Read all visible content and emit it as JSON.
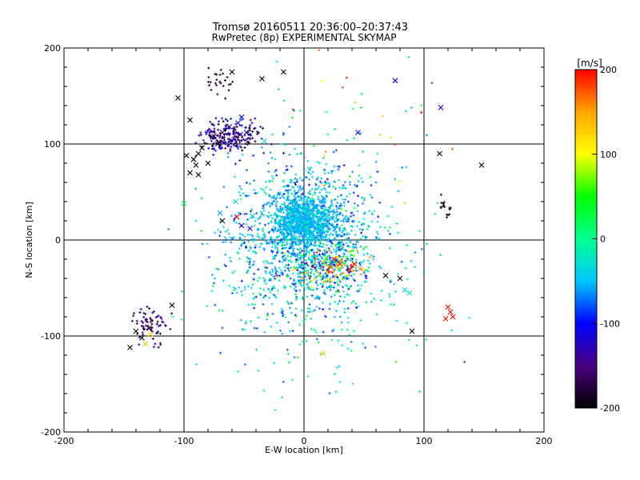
{
  "chart_data": {
    "type": "scatter",
    "title": "Tromsø 20160511 20:36:00–20:37:43",
    "subtitle": "RwPretec (8p) EXPERIMENTAL SKYMAP",
    "xlabel": "E-W location [km]",
    "ylabel": "N-S location [km]",
    "xlim": [
      -200,
      200
    ],
    "ylim": [
      -200,
      200
    ],
    "xticks": [
      "-200",
      "-100",
      "0",
      "100",
      "200"
    ],
    "yticks": [
      "-200",
      "-100",
      "0",
      "100",
      "200"
    ],
    "grid": true,
    "colorbar": {
      "label": "[m/s]",
      "range": [
        -200,
        200
      ],
      "ticks": [
        "200",
        "100",
        "0",
        "-100",
        "-200"
      ],
      "colors": [
        "#000000",
        "#4b0082",
        "#0000ff",
        "#00c8ff",
        "#00ff90",
        "#00ff00",
        "#ffff00",
        "#ffa500",
        "#ff0000"
      ]
    },
    "marker_types": {
      "dot": "+",
      "cross": "x"
    },
    "crosses": [
      {
        "x": -60,
        "y": 175,
        "v": -200
      },
      {
        "x": -35,
        "y": 168,
        "v": -200
      },
      {
        "x": -17,
        "y": 175,
        "v": -200
      },
      {
        "x": -105,
        "y": 148,
        "v": -200
      },
      {
        "x": -95,
        "y": 125,
        "v": -200
      },
      {
        "x": -75,
        "y": 108,
        "v": -180
      },
      {
        "x": -68,
        "y": 112,
        "v": -160
      },
      {
        "x": -62,
        "y": 118,
        "v": -140
      },
      {
        "x": -55,
        "y": 122,
        "v": -120
      },
      {
        "x": -48,
        "y": 112,
        "v": -120
      },
      {
        "x": -52,
        "y": 128,
        "v": -100
      },
      {
        "x": -58,
        "y": 105,
        "v": -150
      },
      {
        "x": -72,
        "y": 100,
        "v": -190
      },
      {
        "x": -98,
        "y": 88,
        "v": -200
      },
      {
        "x": -92,
        "y": 84,
        "v": -200
      },
      {
        "x": -88,
        "y": 90,
        "v": -200
      },
      {
        "x": -85,
        "y": 96,
        "v": -200
      },
      {
        "x": -80,
        "y": 80,
        "v": -200
      },
      {
        "x": -90,
        "y": 78,
        "v": -200
      },
      {
        "x": -95,
        "y": 70,
        "v": -200
      },
      {
        "x": -88,
        "y": 68,
        "v": -200
      },
      {
        "x": -33,
        "y": 103,
        "v": -30
      },
      {
        "x": 45,
        "y": 112,
        "v": -110
      },
      {
        "x": 76,
        "y": 166,
        "v": -110
      },
      {
        "x": 114,
        "y": 138,
        "v": -110
      },
      {
        "x": 113,
        "y": 90,
        "v": -200
      },
      {
        "x": 148,
        "y": 78,
        "v": -200
      },
      {
        "x": -100,
        "y": 38,
        "v": 20
      },
      {
        "x": -57,
        "y": 40,
        "v": -40
      },
      {
        "x": -68,
        "y": 20,
        "v": -200
      },
      {
        "x": -52,
        "y": 15,
        "v": -130
      },
      {
        "x": -70,
        "y": 28,
        "v": -60
      },
      {
        "x": -45,
        "y": 12,
        "v": -120
      },
      {
        "x": -56,
        "y": 24,
        "v": 200
      },
      {
        "x": -43,
        "y": 25,
        "v": -50
      },
      {
        "x": 25,
        "y": -20,
        "v": 200
      },
      {
        "x": 30,
        "y": -25,
        "v": 200
      },
      {
        "x": 22,
        "y": -28,
        "v": 180
      },
      {
        "x": 42,
        "y": -25,
        "v": 200
      },
      {
        "x": 38,
        "y": -31,
        "v": 200
      },
      {
        "x": 47,
        "y": -30,
        "v": 150
      },
      {
        "x": 68,
        "y": -37,
        "v": -200
      },
      {
        "x": 80,
        "y": -40,
        "v": -200
      },
      {
        "x": 84,
        "y": -52,
        "v": -30
      },
      {
        "x": 88,
        "y": -55,
        "v": -20
      },
      {
        "x": 120,
        "y": -70,
        "v": 200
      },
      {
        "x": 118,
        "y": -82,
        "v": 200
      },
      {
        "x": 124,
        "y": -80,
        "v": 200
      },
      {
        "x": 122,
        "y": -75,
        "v": 200
      },
      {
        "x": -110,
        "y": -68,
        "v": -200
      },
      {
        "x": -140,
        "y": -95,
        "v": -200
      },
      {
        "x": -135,
        "y": -102,
        "v": -200
      },
      {
        "x": -128,
        "y": -98,
        "v": 120
      },
      {
        "x": -132,
        "y": -108,
        "v": 130
      },
      {
        "x": -145,
        "y": -112,
        "v": -200
      },
      {
        "x": -129,
        "y": -92,
        "v": -180
      },
      {
        "x": 90,
        "y": -95,
        "v": -200
      },
      {
        "x": 16,
        "y": -118,
        "v": 130
      },
      {
        "x": -53,
        "y": 110,
        "v": -120
      }
    ],
    "dot_clusters": [
      {
        "cx": 0,
        "cy": 5,
        "sx": 30,
        "sy": 38,
        "n": 1300,
        "vmin": -110,
        "vmax": 70,
        "bias": "cyan"
      },
      {
        "cx": 0,
        "cy": 20,
        "sx": 12,
        "sy": 12,
        "n": 900,
        "vmin": -60,
        "vmax": 20,
        "bias": "cyan"
      },
      {
        "cx": 20,
        "cy": -30,
        "sx": 16,
        "sy": 10,
        "n": 260,
        "vmin": -140,
        "vmax": 200,
        "bias": "mixed"
      },
      {
        "cx": -62,
        "cy": 108,
        "sx": 12,
        "sy": 10,
        "n": 210,
        "vmin": -200,
        "vmax": -80,
        "bias": "dark"
      },
      {
        "cx": -72,
        "cy": 165,
        "sx": 6,
        "sy": 8,
        "n": 25,
        "vmin": -200,
        "vmax": -160,
        "bias": "dark"
      },
      {
        "cx": -128,
        "cy": -90,
        "sx": 7,
        "sy": 10,
        "n": 70,
        "vmin": -200,
        "vmax": -100,
        "bias": "dark"
      },
      {
        "cx": 118,
        "cy": 32,
        "sx": 3,
        "sy": 5,
        "n": 16,
        "vmin": -200,
        "vmax": -180,
        "bias": "dark"
      },
      {
        "cx": 10,
        "cy": -60,
        "sx": 45,
        "sy": 50,
        "n": 220,
        "vmin": -80,
        "vmax": 60,
        "bias": "green"
      },
      {
        "cx": 40,
        "cy": 120,
        "sx": 40,
        "sy": 50,
        "n": 60,
        "vmin": -80,
        "vmax": 200,
        "bias": "mixed"
      }
    ]
  }
}
